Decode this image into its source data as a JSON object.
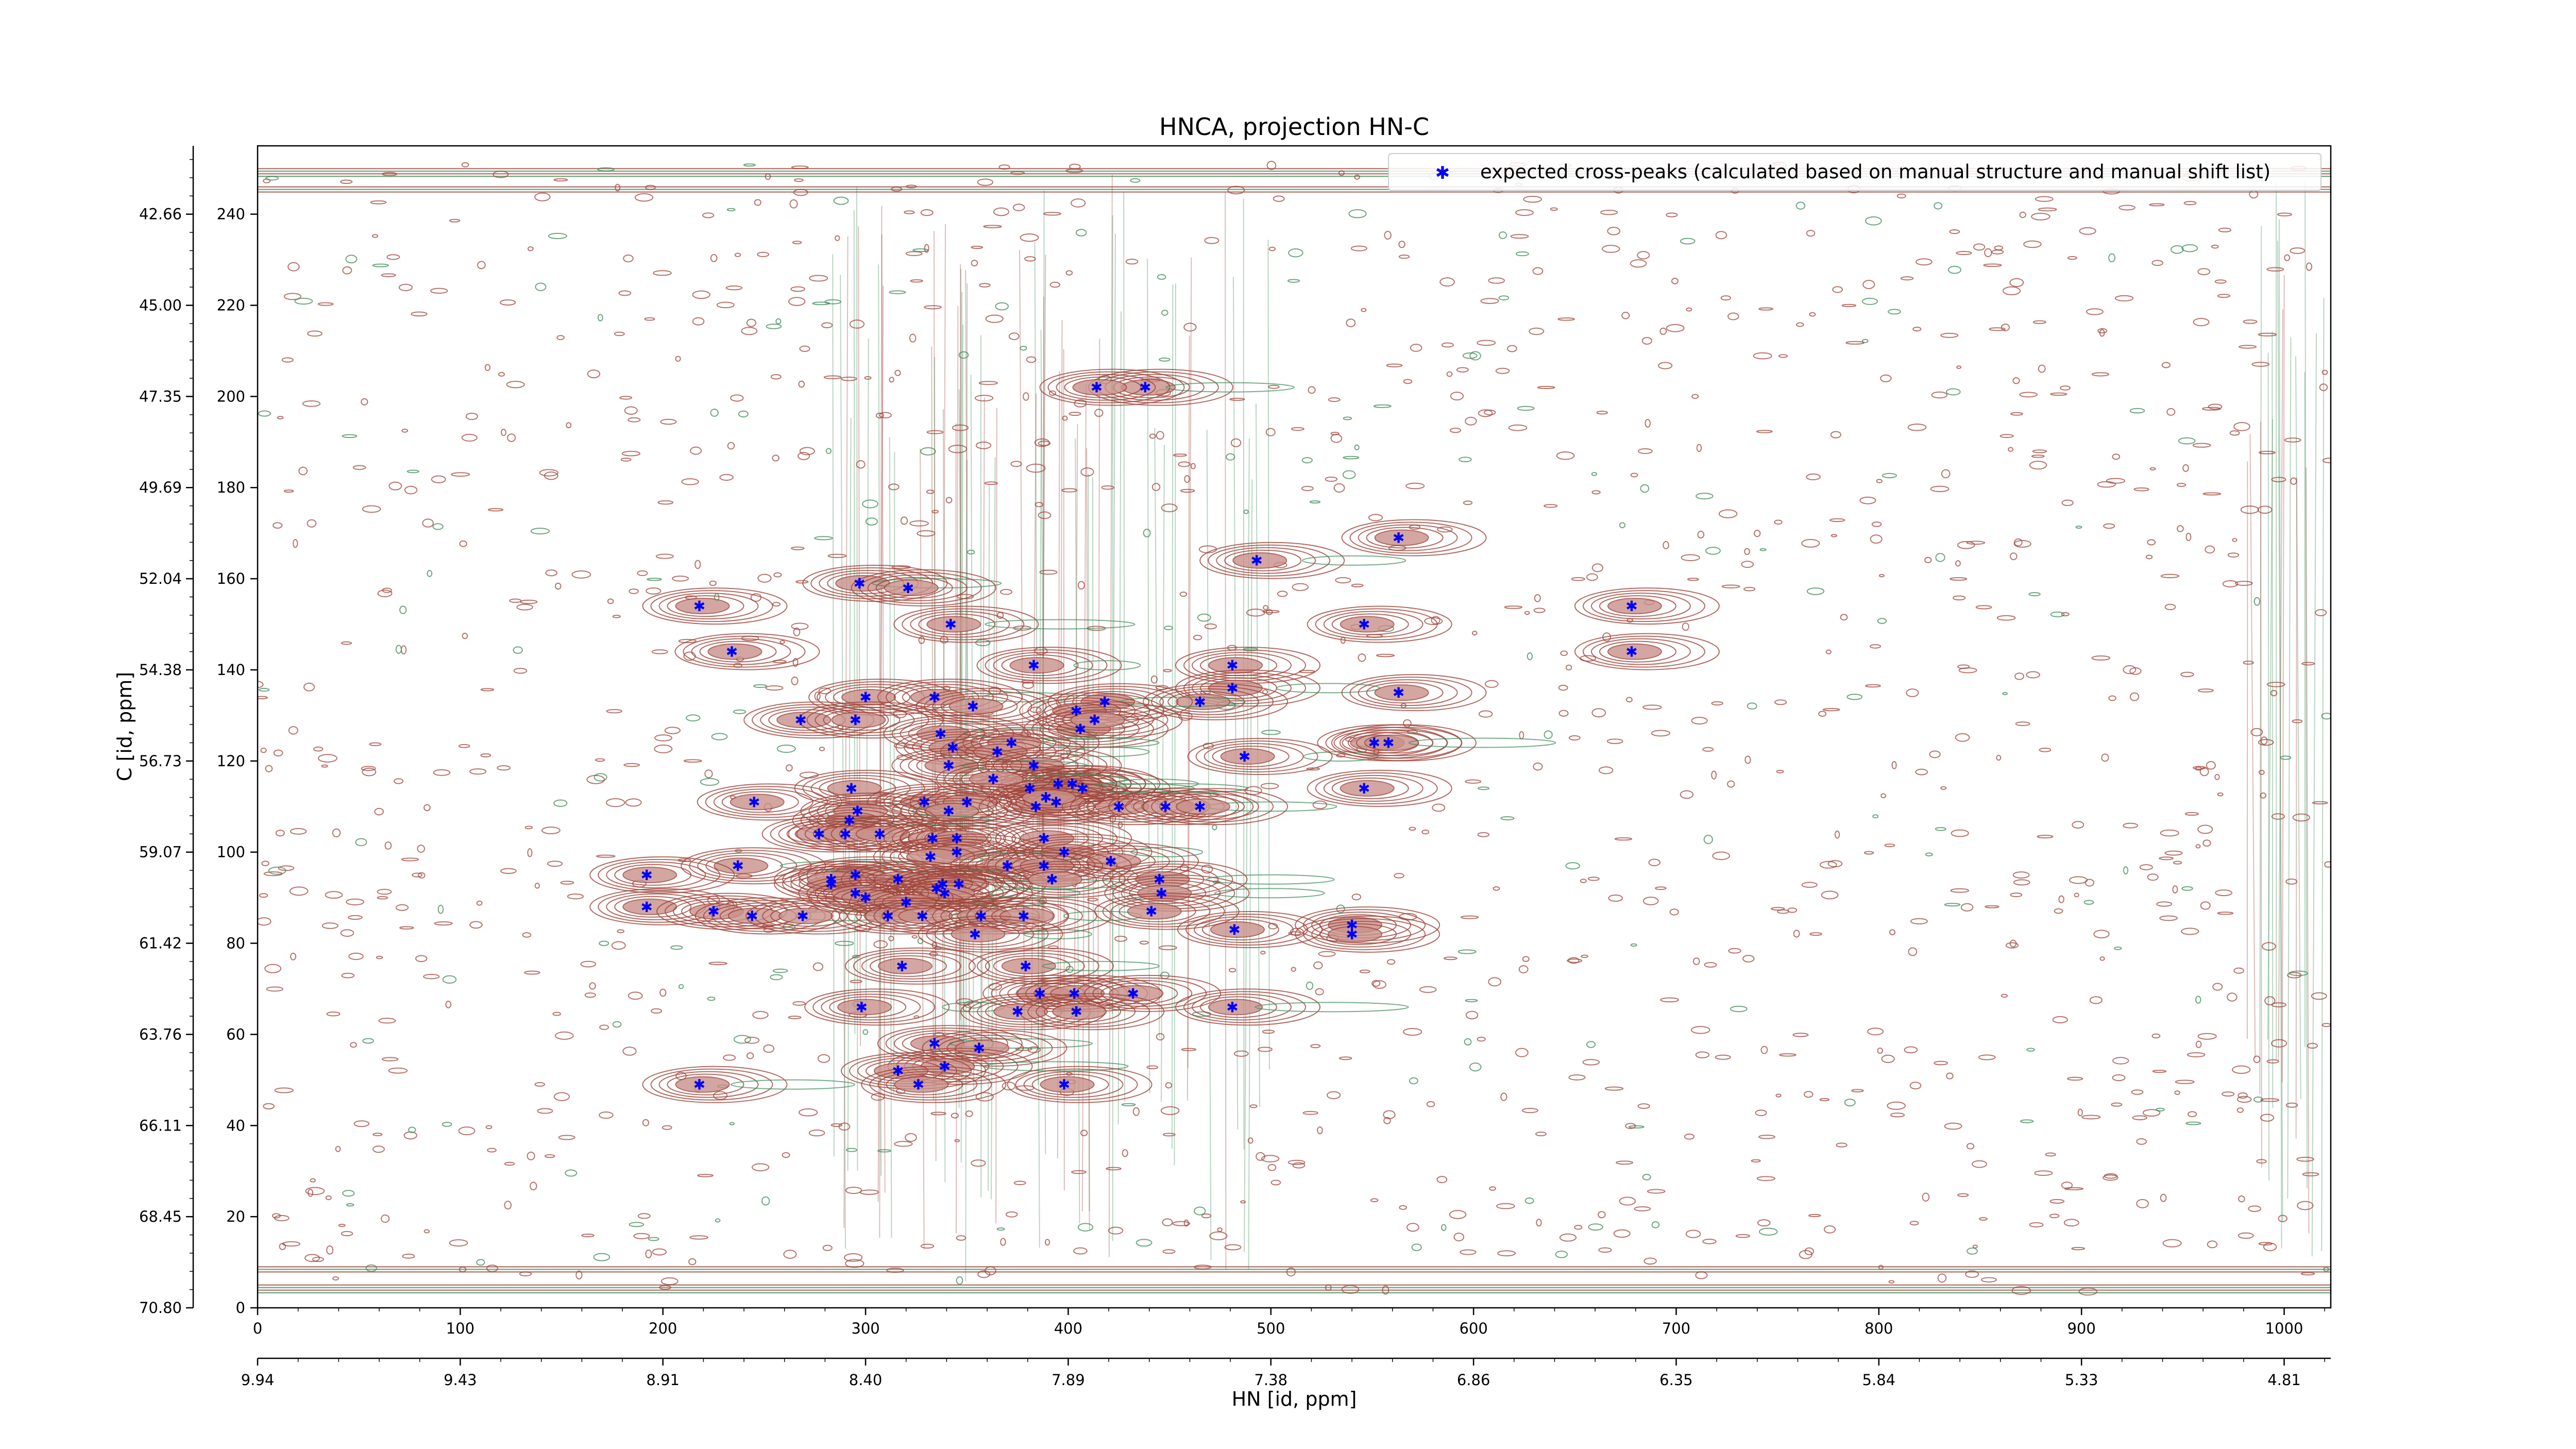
{
  "chart_data": {
    "type": "scatter",
    "title": "HNCA, projection HN-C",
    "xlabel": "HN [id, ppm]",
    "ylabel": "C [id, ppm]",
    "x_index_ticks": [
      "0",
      "100",
      "200",
      "300",
      "400",
      "500",
      "600",
      "700",
      "800",
      "900",
      "1000"
    ],
    "x_index_tick_values": [
      0,
      100,
      200,
      300,
      400,
      500,
      600,
      700,
      800,
      900,
      1000
    ],
    "x_ppm_ticks": [
      "9.94",
      "9.43",
      "8.91",
      "8.40",
      "7.89",
      "7.38",
      "6.86",
      "6.35",
      "5.84",
      "5.33",
      "4.81"
    ],
    "x_ppm_tick_positions": [
      0,
      100,
      200,
      300,
      400,
      500,
      600,
      700,
      800,
      900,
      1000
    ],
    "y_index_ticks": [
      "0",
      "20",
      "40",
      "60",
      "80",
      "100",
      "120",
      "140",
      "160",
      "180",
      "200",
      "220",
      "240"
    ],
    "y_index_tick_values": [
      0,
      20,
      40,
      60,
      80,
      100,
      120,
      140,
      160,
      180,
      200,
      220,
      240
    ],
    "y_ppm_ticks": [
      "70.80",
      "68.45",
      "66.11",
      "63.76",
      "61.42",
      "59.07",
      "56.73",
      "54.38",
      "52.04",
      "49.69",
      "47.35",
      "45.00",
      "42.66"
    ],
    "y_ppm_tick_positions": [
      0,
      20,
      40,
      60,
      80,
      100,
      120,
      140,
      160,
      180,
      200,
      220,
      240
    ],
    "xlim": [
      0,
      1023
    ],
    "ylim": [
      0,
      255
    ],
    "grid": false,
    "legend_position": "top-right",
    "legend": [
      "expected cross-peaks (calculated based on manual structure and manual shift list)"
    ],
    "colors": {
      "positive_contours": "#a0453b",
      "negative_contours": "#3d8a57",
      "peaks": "#0000ff"
    },
    "series": [
      {
        "name": "expected cross-peaks (calculated based on manual structure and manual shift list)",
        "points": [
          [
            438,
            202
          ],
          [
            414,
            202
          ],
          [
            563,
            169
          ],
          [
            493,
            164
          ],
          [
            297,
            159
          ],
          [
            321,
            158
          ],
          [
            218,
            154
          ],
          [
            678,
            154
          ],
          [
            342,
            150
          ],
          [
            546,
            150
          ],
          [
            234,
            144
          ],
          [
            678,
            144
          ],
          [
            383,
            141
          ],
          [
            481,
            141
          ],
          [
            481,
            136
          ],
          [
            563,
            135
          ],
          [
            300,
            134
          ],
          [
            334,
            134
          ],
          [
            353,
            132
          ],
          [
            465,
            133
          ],
          [
            418,
            133
          ],
          [
            404,
            131
          ],
          [
            268,
            129
          ],
          [
            295,
            129
          ],
          [
            406,
            127
          ],
          [
            337,
            126
          ],
          [
            413,
            129
          ],
          [
            343,
            123
          ],
          [
            372,
            124
          ],
          [
            365,
            122
          ],
          [
            487,
            121
          ],
          [
            551,
            124
          ],
          [
            558,
            124
          ],
          [
            383,
            119
          ],
          [
            341,
            119
          ],
          [
            395,
            115
          ],
          [
            402,
            115
          ],
          [
            293,
            114
          ],
          [
            407,
            114
          ],
          [
            546,
            114
          ],
          [
            381,
            114
          ],
          [
            363,
            116
          ],
          [
            245,
            111
          ],
          [
            329,
            111
          ],
          [
            350,
            111
          ],
          [
            384,
            110
          ],
          [
            394,
            111
          ],
          [
            425,
            110
          ],
          [
            448,
            110
          ],
          [
            465,
            110
          ],
          [
            296,
            109
          ],
          [
            389,
            112
          ],
          [
            341,
            109
          ],
          [
            292,
            107
          ],
          [
            277,
            104
          ],
          [
            290,
            104
          ],
          [
            307,
            104
          ],
          [
            333,
            103
          ],
          [
            345,
            103
          ],
          [
            388,
            103
          ],
          [
            345,
            100
          ],
          [
            398,
            100
          ],
          [
            332,
            99
          ],
          [
            421,
            98
          ],
          [
            370,
            97
          ],
          [
            388,
            97
          ],
          [
            237,
            97
          ],
          [
            192,
            95
          ],
          [
            295,
            95
          ],
          [
            283,
            93
          ],
          [
            346,
            93
          ],
          [
            283,
            94
          ],
          [
            316,
            94
          ],
          [
            392,
            94
          ],
          [
            445,
            94
          ],
          [
            338,
            93
          ],
          [
            335,
            92
          ],
          [
            339,
            91
          ],
          [
            446,
            91
          ],
          [
            295,
            91
          ],
          [
            300,
            90
          ],
          [
            320,
            89
          ],
          [
            192,
            88
          ],
          [
            225,
            87
          ],
          [
            244,
            86
          ],
          [
            269,
            86
          ],
          [
            311,
            86
          ],
          [
            328,
            86
          ],
          [
            357,
            86
          ],
          [
            378,
            86
          ],
          [
            441,
            87
          ],
          [
            540,
            84
          ],
          [
            482,
            83
          ],
          [
            354,
            82
          ],
          [
            540,
            82
          ],
          [
            318,
            75
          ],
          [
            379,
            75
          ],
          [
            386,
            69
          ],
          [
            403,
            69
          ],
          [
            432,
            69
          ],
          [
            298,
            66
          ],
          [
            481,
            66
          ],
          [
            375,
            65
          ],
          [
            404,
            65
          ],
          [
            334,
            58
          ],
          [
            356,
            57
          ],
          [
            339,
            53
          ],
          [
            316,
            52
          ],
          [
            218,
            49
          ],
          [
            326,
            49
          ],
          [
            398,
            49
          ]
        ]
      }
    ]
  }
}
